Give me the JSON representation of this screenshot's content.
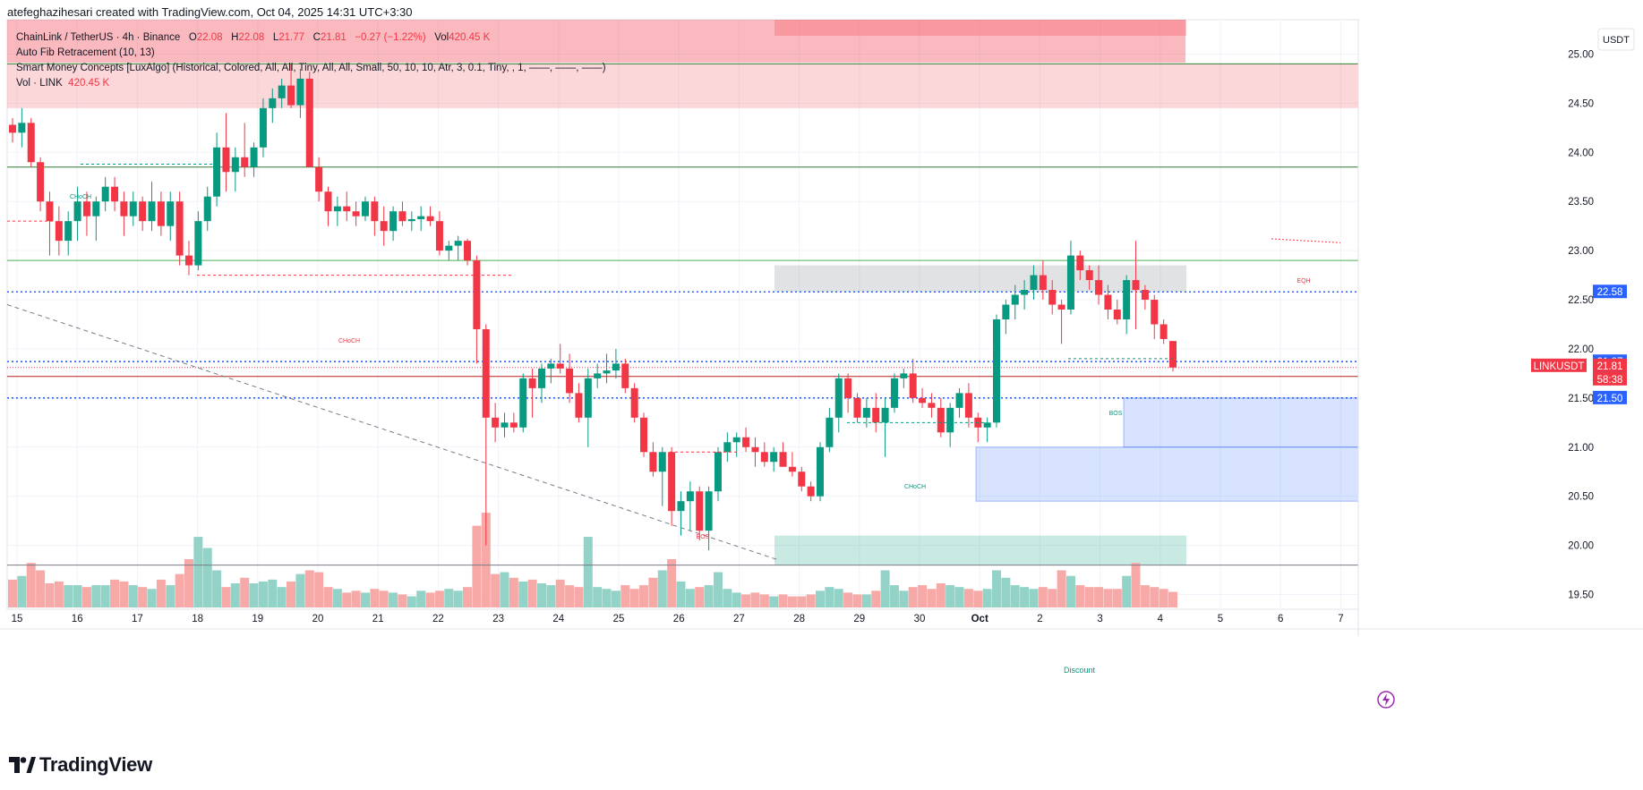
{
  "header": {
    "title": "atefeghazihesari created with TradingView.com, Oct 04, 2025 14:31 UTC+3:30"
  },
  "legend": {
    "symbol": "ChainLink / TetherUS · 4h · Binance",
    "o_label": "O",
    "o": "22.08",
    "h_label": "H",
    "h": "22.08",
    "l_label": "L",
    "l": "21.77",
    "c_label": "C",
    "c": "21.81",
    "change": "−0.27 (−1.22%)",
    "vol_label": "Vol",
    "vol": "420.45 K",
    "indicator1": "Auto Fib Retracement (10, 13)",
    "indicator2": "Smart Money Concepts [LuxAlgo] (Historical, Colored, All, All, Tiny, All, All, Small, 50, 10, 10, Atr, 3, 0.1, Tiny, , 1, ——, ——, ——)",
    "indicator3_label": "Vol · LINK",
    "indicator3_value": "420.45 K"
  },
  "footer": {
    "brand": "TradingView"
  },
  "colors": {
    "up": "#089981",
    "down": "#f23645",
    "up_vol": "#92d2c7",
    "down_vol": "#f7a9a7",
    "fib_blue": "#2962ff",
    "accent": "#2962ff"
  },
  "chart_data": {
    "type": "candlestick",
    "timeframe": "4h",
    "price_axis": {
      "unit": "USDT",
      "range": [
        19.35,
        25.35
      ],
      "ticks": [
        19.5,
        20.0,
        20.5,
        21.0,
        21.5,
        22.0,
        22.5,
        23.0,
        23.5,
        24.0,
        24.5,
        25.0
      ]
    },
    "time_axis": {
      "ticks": [
        "15",
        "16",
        "17",
        "18",
        "19",
        "20",
        "21",
        "22",
        "23",
        "24",
        "25",
        "26",
        "27",
        "28",
        "29",
        "30",
        "Oct",
        "2",
        "3",
        "4",
        "5",
        "6",
        "7"
      ]
    },
    "price_badges": [
      {
        "label": "22.58",
        "price": 22.58,
        "color": "#2962ff"
      },
      {
        "label": "21.87",
        "price": 21.87,
        "color": "#2962ff"
      },
      {
        "label": "21.72",
        "price": 21.72,
        "color": "#2962ff"
      },
      {
        "label": "21.50",
        "price": 21.5,
        "color": "#2962ff"
      }
    ],
    "last_price": {
      "symbol": "LINKUSDT",
      "price": "21.81",
      "countdown": "58:38",
      "value": 21.81
    },
    "candles": [
      [
        24.28,
        24.35,
        24.1,
        24.2,
        0.75
      ],
      [
        24.2,
        24.45,
        24.05,
        24.3,
        0.85
      ],
      [
        24.3,
        24.35,
        23.85,
        23.9,
        1.2
      ],
      [
        23.9,
        23.95,
        23.4,
        23.5,
        1.0
      ],
      [
        23.5,
        23.6,
        22.95,
        23.3,
        0.65
      ],
      [
        23.3,
        23.45,
        22.95,
        23.1,
        0.7
      ],
      [
        23.1,
        23.4,
        22.95,
        23.3,
        0.6
      ],
      [
        23.3,
        23.65,
        23.1,
        23.5,
        0.6
      ],
      [
        23.5,
        23.6,
        23.15,
        23.35,
        0.55
      ],
      [
        23.35,
        23.55,
        23.1,
        23.5,
        0.6
      ],
      [
        23.5,
        23.75,
        23.4,
        23.65,
        0.6
      ],
      [
        23.65,
        23.75,
        23.4,
        23.5,
        0.75
      ],
      [
        23.5,
        23.6,
        23.15,
        23.35,
        0.7
      ],
      [
        23.35,
        23.6,
        23.25,
        23.5,
        0.6
      ],
      [
        23.5,
        23.55,
        23.2,
        23.3,
        0.55
      ],
      [
        23.3,
        23.7,
        23.2,
        23.5,
        0.5
      ],
      [
        23.5,
        23.6,
        23.15,
        23.25,
        0.75
      ],
      [
        23.25,
        23.6,
        23.1,
        23.5,
        0.6
      ],
      [
        23.5,
        23.6,
        22.85,
        22.95,
        0.9
      ],
      [
        22.95,
        23.1,
        22.75,
        22.85,
        1.3
      ],
      [
        22.85,
        23.4,
        22.8,
        23.3,
        1.9
      ],
      [
        23.3,
        23.65,
        23.2,
        23.55,
        1.6
      ],
      [
        23.55,
        24.2,
        23.45,
        24.05,
        1.0
      ],
      [
        24.05,
        24.4,
        23.6,
        23.8,
        0.55
      ],
      [
        23.8,
        24.05,
        23.6,
        23.95,
        0.65
      ],
      [
        23.95,
        24.3,
        23.75,
        23.85,
        0.8
      ],
      [
        23.85,
        24.1,
        23.75,
        24.05,
        0.65
      ],
      [
        24.05,
        24.55,
        23.95,
        24.45,
        0.7
      ],
      [
        24.45,
        24.65,
        24.3,
        24.55,
        0.75
      ],
      [
        24.55,
        24.75,
        24.45,
        24.68,
        0.55
      ],
      [
        24.68,
        24.9,
        24.45,
        24.48,
        0.7
      ],
      [
        24.48,
        24.85,
        24.35,
        24.75,
        0.9
      ],
      [
        24.75,
        24.82,
        23.85,
        23.85,
        1.0
      ],
      [
        23.85,
        23.95,
        23.5,
        23.6,
        0.95
      ],
      [
        23.6,
        23.65,
        23.25,
        23.4,
        0.55
      ],
      [
        23.4,
        23.55,
        23.25,
        23.45,
        0.5
      ],
      [
        23.45,
        23.6,
        23.3,
        23.4,
        0.4
      ],
      [
        23.4,
        23.5,
        23.25,
        23.35,
        0.45
      ],
      [
        23.35,
        23.55,
        23.3,
        23.5,
        0.4
      ],
      [
        23.5,
        23.55,
        23.15,
        23.3,
        0.5
      ],
      [
        23.3,
        23.45,
        23.05,
        23.2,
        0.45
      ],
      [
        23.2,
        23.45,
        23.1,
        23.4,
        0.4
      ],
      [
        23.4,
        23.5,
        23.25,
        23.3,
        0.35
      ],
      [
        23.3,
        23.4,
        23.2,
        23.32,
        0.3
      ],
      [
        23.32,
        23.45,
        23.2,
        23.35,
        0.45
      ],
      [
        23.35,
        23.45,
        23.25,
        23.3,
        0.4
      ],
      [
        23.3,
        23.4,
        22.95,
        23.0,
        0.45
      ],
      [
        23.0,
        23.1,
        22.9,
        23.05,
        0.5
      ],
      [
        23.05,
        23.15,
        22.9,
        23.1,
        0.45
      ],
      [
        23.1,
        23.12,
        22.85,
        22.9,
        0.55
      ],
      [
        22.9,
        22.95,
        21.85,
        22.2,
        2.2
      ],
      [
        22.2,
        22.25,
        20.0,
        21.3,
        2.55
      ],
      [
        21.3,
        21.45,
        21.05,
        21.2,
        0.9
      ],
      [
        21.2,
        21.35,
        21.1,
        21.25,
        0.95
      ],
      [
        21.25,
        21.35,
        21.15,
        21.2,
        0.8
      ],
      [
        21.2,
        21.75,
        21.15,
        21.7,
        0.7
      ],
      [
        21.7,
        21.8,
        21.3,
        21.6,
        0.75
      ],
      [
        21.6,
        21.85,
        21.45,
        21.8,
        0.65
      ],
      [
        21.8,
        21.9,
        21.65,
        21.85,
        0.6
      ],
      [
        21.85,
        22.05,
        21.75,
        21.8,
        0.75
      ],
      [
        21.8,
        21.95,
        21.45,
        21.55,
        0.6
      ],
      [
        21.55,
        21.65,
        21.25,
        21.3,
        0.55
      ],
      [
        21.3,
        21.8,
        21.0,
        21.7,
        1.9
      ],
      [
        21.7,
        21.85,
        21.6,
        21.75,
        0.55
      ],
      [
        21.75,
        21.95,
        21.65,
        21.78,
        0.5
      ],
      [
        21.78,
        22.0,
        21.7,
        21.85,
        0.45
      ],
      [
        21.85,
        21.9,
        21.55,
        21.6,
        0.6
      ],
      [
        21.6,
        21.65,
        21.25,
        21.3,
        0.5
      ],
      [
        21.3,
        21.35,
        20.9,
        20.95,
        0.6
      ],
      [
        20.95,
        21.05,
        20.7,
        20.75,
        0.8
      ],
      [
        20.75,
        21.0,
        20.4,
        20.95,
        1.0
      ],
      [
        20.95,
        21.0,
        20.2,
        20.35,
        1.3
      ],
      [
        20.35,
        20.55,
        20.1,
        20.45,
        0.7
      ],
      [
        20.45,
        20.65,
        20.15,
        20.55,
        0.5
      ],
      [
        20.55,
        20.6,
        20.05,
        20.15,
        0.55
      ],
      [
        20.15,
        20.6,
        19.95,
        20.55,
        0.6
      ],
      [
        20.55,
        21.0,
        20.45,
        20.95,
        0.95
      ],
      [
        20.95,
        21.15,
        20.85,
        21.05,
        0.5
      ],
      [
        21.05,
        21.15,
        20.9,
        21.1,
        0.4
      ],
      [
        21.1,
        21.2,
        20.95,
        21.0,
        0.35
      ],
      [
        21.0,
        21.1,
        20.8,
        20.95,
        0.4
      ],
      [
        20.95,
        21.05,
        20.8,
        20.85,
        0.35
      ],
      [
        20.85,
        21.0,
        20.75,
        20.95,
        0.3
      ],
      [
        20.95,
        21.05,
        20.8,
        20.8,
        0.35
      ],
      [
        20.8,
        20.95,
        20.7,
        20.75,
        0.3
      ],
      [
        20.75,
        20.8,
        20.55,
        20.6,
        0.3
      ],
      [
        20.6,
        20.65,
        20.45,
        20.5,
        0.35
      ],
      [
        20.5,
        21.05,
        20.45,
        21.0,
        0.45
      ],
      [
        21.0,
        21.4,
        20.95,
        21.3,
        0.55
      ],
      [
        21.3,
        21.75,
        21.15,
        21.7,
        0.5
      ],
      [
        21.7,
        21.75,
        21.35,
        21.5,
        0.4
      ],
      [
        21.5,
        21.55,
        21.25,
        21.3,
        0.35
      ],
      [
        21.3,
        21.5,
        21.2,
        21.4,
        0.35
      ],
      [
        21.4,
        21.55,
        21.15,
        21.25,
        0.45
      ],
      [
        21.25,
        21.5,
        20.9,
        21.4,
        1.0
      ],
      [
        21.4,
        21.75,
        21.35,
        21.7,
        0.6
      ],
      [
        21.7,
        21.8,
        21.6,
        21.75,
        0.45
      ],
      [
        21.75,
        21.9,
        21.45,
        21.5,
        0.55
      ],
      [
        21.5,
        21.6,
        21.4,
        21.45,
        0.6
      ],
      [
        21.45,
        21.55,
        21.3,
        21.4,
        0.5
      ],
      [
        21.4,
        21.5,
        21.1,
        21.15,
        0.65
      ],
      [
        21.15,
        21.45,
        21.0,
        21.4,
        0.6
      ],
      [
        21.4,
        21.6,
        21.3,
        21.55,
        0.55
      ],
      [
        21.55,
        21.65,
        21.2,
        21.3,
        0.5
      ],
      [
        21.3,
        21.35,
        21.05,
        21.2,
        0.45
      ],
      [
        21.2,
        21.3,
        21.05,
        21.25,
        0.5
      ],
      [
        21.25,
        22.35,
        21.2,
        22.3,
        1.0
      ],
      [
        22.3,
        22.5,
        22.15,
        22.45,
        0.8
      ],
      [
        22.45,
        22.65,
        22.3,
        22.55,
        0.6
      ],
      [
        22.55,
        22.7,
        22.4,
        22.6,
        0.55
      ],
      [
        22.6,
        22.85,
        22.5,
        22.75,
        0.5
      ],
      [
        22.75,
        22.9,
        22.5,
        22.6,
        0.55
      ],
      [
        22.6,
        22.7,
        22.35,
        22.45,
        0.5
      ],
      [
        22.45,
        22.5,
        22.05,
        22.4,
        1.0
      ],
      [
        22.4,
        23.1,
        22.35,
        22.95,
        0.85
      ],
      [
        22.95,
        23.0,
        22.7,
        22.8,
        0.6
      ],
      [
        22.8,
        22.85,
        22.6,
        22.7,
        0.55
      ],
      [
        22.7,
        22.85,
        22.45,
        22.55,
        0.55
      ],
      [
        22.55,
        22.65,
        22.3,
        22.4,
        0.5
      ],
      [
        22.4,
        22.5,
        22.25,
        22.3,
        0.5
      ],
      [
        22.3,
        22.75,
        22.15,
        22.7,
        0.85
      ],
      [
        22.7,
        23.1,
        22.2,
        22.6,
        1.2
      ],
      [
        22.6,
        22.65,
        22.4,
        22.5,
        0.6
      ],
      [
        22.5,
        22.55,
        22.1,
        22.25,
        0.55
      ],
      [
        22.25,
        22.3,
        22.05,
        22.1,
        0.5
      ],
      [
        22.08,
        22.08,
        21.77,
        21.81,
        0.42
      ]
    ],
    "volume_max": 2.6
  }
}
